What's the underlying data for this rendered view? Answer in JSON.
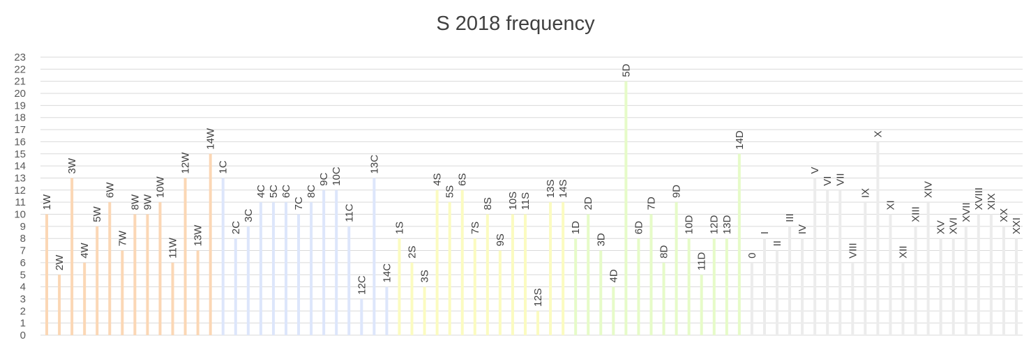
{
  "chart_data": {
    "type": "bar",
    "title": "S 2018 frequency",
    "xlabel": "",
    "ylabel": "",
    "ylim": [
      0,
      23
    ],
    "yticks": [
      0,
      1,
      2,
      3,
      4,
      5,
      6,
      7,
      8,
      9,
      10,
      11,
      12,
      13,
      14,
      15,
      16,
      17,
      18,
      19,
      20,
      21,
      22,
      23
    ],
    "grid": true,
    "legend": "none",
    "data_labels": "category names above bars",
    "categories": [
      "1W",
      "2W",
      "3W",
      "4W",
      "5W",
      "6W",
      "7W",
      "8W",
      "9W",
      "10W",
      "11W",
      "12W",
      "13W",
      "14W",
      "1C",
      "2C",
      "3C",
      "4C",
      "5C",
      "6C",
      "7C",
      "8C",
      "9C",
      "10C",
      "11C",
      "12C",
      "13C",
      "14C",
      "1S",
      "2S",
      "3S",
      "4S",
      "5S",
      "6S",
      "7S",
      "8S",
      "9S",
      "10S",
      "11S",
      "12S",
      "13S",
      "14S",
      "1D",
      "2D",
      "3D",
      "4D",
      "5D",
      "6D",
      "7D",
      "8D",
      "9D",
      "10D",
      "11D",
      "12D",
      "13D",
      "14D",
      "0",
      "I",
      "II",
      "III",
      "IV",
      "V",
      "VI",
      "VII",
      "VIII",
      "IX",
      "X",
      "XI",
      "XII",
      "XIII",
      "XIV",
      "XV",
      "XVI",
      "XVII",
      "XVIII",
      "XIX",
      "XX",
      "XXI"
    ],
    "values": [
      10,
      5,
      13,
      6,
      9,
      11,
      7,
      10,
      10,
      11,
      6,
      13,
      7,
      15,
      13,
      8,
      9,
      11,
      11,
      11,
      10,
      11,
      12,
      12,
      9,
      3,
      13,
      4,
      8,
      6,
      4,
      12,
      11,
      12,
      8,
      10,
      7,
      10,
      10,
      2,
      11,
      11,
      8,
      10,
      7,
      4,
      21,
      8,
      10,
      6,
      11,
      8,
      5,
      8,
      8,
      15,
      6,
      8,
      7,
      9,
      8,
      13,
      12,
      12,
      6,
      11,
      16,
      10,
      6,
      9,
      11,
      8,
      8,
      9,
      10,
      10,
      9,
      8
    ],
    "group_colors": {
      "W": "#fbd7b5",
      "C": "#dde6fb",
      "S": "#fbfbc0",
      "D": "#e6fbc8",
      "R": "#ececec"
    },
    "groups": [
      "W",
      "W",
      "W",
      "W",
      "W",
      "W",
      "W",
      "W",
      "W",
      "W",
      "W",
      "W",
      "W",
      "W",
      "C",
      "C",
      "C",
      "C",
      "C",
      "C",
      "C",
      "C",
      "C",
      "C",
      "C",
      "C",
      "C",
      "C",
      "S",
      "S",
      "S",
      "S",
      "S",
      "S",
      "S",
      "S",
      "S",
      "S",
      "S",
      "S",
      "S",
      "S",
      "D",
      "D",
      "D",
      "D",
      "D",
      "D",
      "D",
      "D",
      "D",
      "D",
      "D",
      "D",
      "D",
      "D",
      "R",
      "R",
      "R",
      "R",
      "R",
      "R",
      "R",
      "R",
      "R",
      "R",
      "R",
      "R",
      "R",
      "R",
      "R",
      "R",
      "R",
      "R",
      "R",
      "R",
      "R",
      "R"
    ]
  }
}
